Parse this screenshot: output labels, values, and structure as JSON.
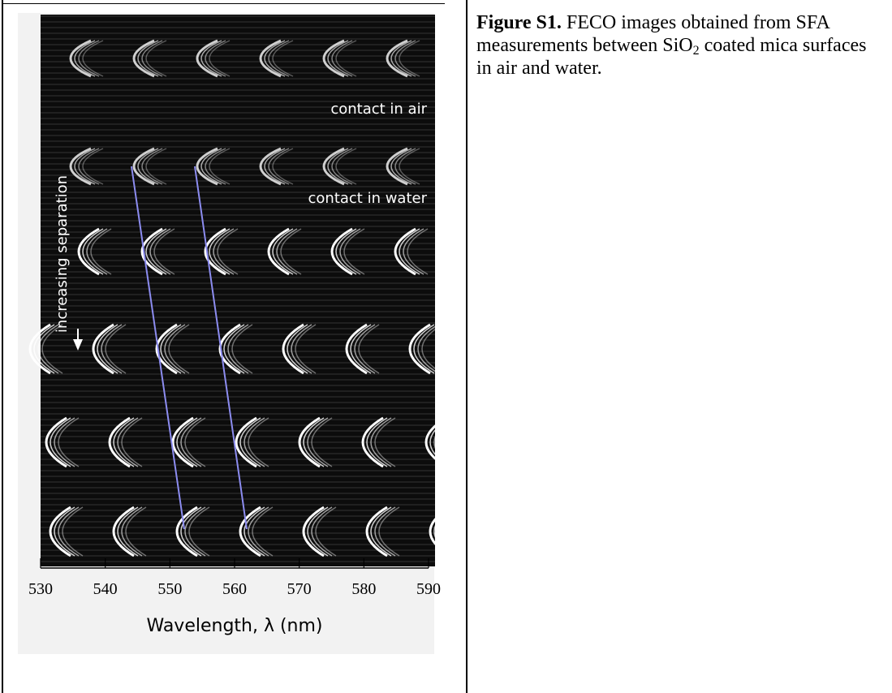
{
  "figure": {
    "annotations": {
      "air": "contact in air",
      "water": "contact in water",
      "arrow": "increasing separation"
    },
    "axis": {
      "ticks": [
        530,
        540,
        550,
        560,
        570,
        580,
        590
      ],
      "label": "Wavelength, λ (nm)"
    }
  },
  "caption": {
    "label": "Figure S1.",
    "text_before": " FECO images obtained from SFA measurements between SiO",
    "subscript": "2",
    "text_after": " coated mica surfaces in air and water."
  }
}
